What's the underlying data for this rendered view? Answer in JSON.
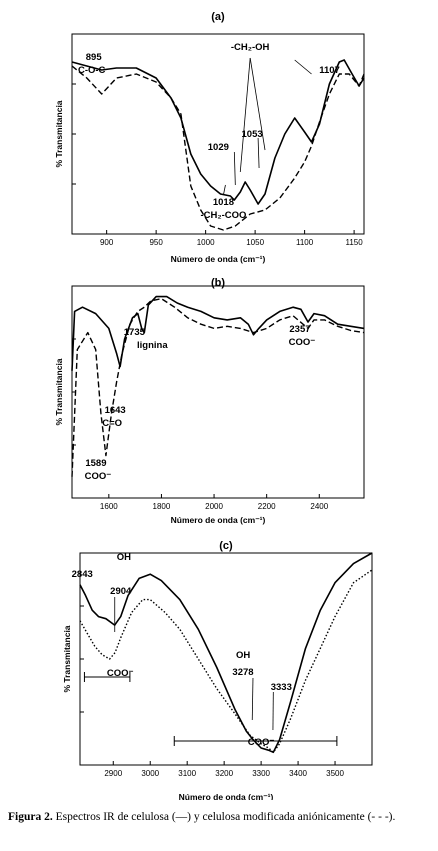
{
  "caption": {
    "label": "Figura 2.",
    "text": "Espectros IR de celulosa (—) y celulosa modificada aniónicamente (- - -)."
  },
  "chart_data": [
    {
      "type": "line",
      "panel": "(a)",
      "xlabel": "Número de onda (cm⁻¹)",
      "ylabel": "% Transmitancia",
      "xlim": [
        865,
        1160
      ],
      "ylim": [
        0,
        100
      ],
      "xticks": [
        "900",
        "950",
        "1000",
        "1050",
        "1100",
        "1150"
      ],
      "annotations": [
        {
          "text": "895",
          "x": 895
        },
        {
          "text": "C-O-C",
          "x": 895
        },
        {
          "text": "1029",
          "x": 1029
        },
        {
          "text": "1053",
          "x": 1053
        },
        {
          "text": "-CH₂-OH",
          "x": 1045
        },
        {
          "text": "1107",
          "x": 1107
        },
        {
          "text": "1018",
          "x": 1018
        },
        {
          "text": "-CH₂-COO",
          "x": 1018
        }
      ],
      "series": [
        {
          "style": "solid",
          "x": [
            865,
            880,
            895,
            910,
            930,
            950,
            965,
            975,
            985,
            995,
            1005,
            1015,
            1025,
            1029,
            1035,
            1040,
            1045,
            1053,
            1060,
            1070,
            1080,
            1090,
            1100,
            1107,
            1115,
            1125,
            1135,
            1140,
            1148,
            1155,
            1160
          ],
          "y": [
            86,
            84,
            82,
            83,
            83,
            78,
            68,
            58,
            40,
            30,
            24,
            20,
            19,
            17,
            21,
            26,
            22,
            15,
            20,
            38,
            50,
            58,
            51,
            46,
            55,
            75,
            86,
            87,
            80,
            74,
            78
          ]
        },
        {
          "style": "dashed",
          "x": [
            865,
            880,
            895,
            910,
            930,
            950,
            965,
            975,
            985,
            995,
            1005,
            1018,
            1030,
            1045,
            1060,
            1075,
            1090,
            1100,
            1107,
            1115,
            1125,
            1135,
            1145,
            1155,
            1160
          ],
          "y": [
            84,
            78,
            70,
            78,
            80,
            76,
            68,
            60,
            24,
            12,
            4,
            2,
            4,
            10,
            12,
            18,
            28,
            36,
            44,
            56,
            70,
            80,
            80,
            74,
            80
          ]
        }
      ]
    },
    {
      "type": "line",
      "panel": "(b)",
      "xlabel": "Número de onda (cm⁻¹)",
      "ylabel": "% Transmitancia",
      "xlim": [
        1460,
        2570
      ],
      "ylim": [
        0,
        100
      ],
      "xticks": [
        "1600",
        "1800",
        "2000",
        "2200",
        "2400"
      ],
      "annotations": [
        {
          "text": "1735",
          "x": 1735
        },
        {
          "text": "lignina",
          "x": 1735
        },
        {
          "text": "1643",
          "x": 1643
        },
        {
          "text": "C=O",
          "x": 1643
        },
        {
          "text": "1589",
          "x": 1589
        },
        {
          "text": "COO⁻",
          "x": 1589
        },
        {
          "text": "2357",
          "x": 2357
        },
        {
          "text": "COO⁻",
          "x": 2357
        }
      ],
      "series": [
        {
          "style": "solid",
          "x": [
            1460,
            1470,
            1500,
            1550,
            1600,
            1630,
            1643,
            1660,
            1690,
            1710,
            1725,
            1735,
            1750,
            1780,
            1820,
            1860,
            1900,
            1950,
            2000,
            2050,
            2100,
            2130,
            2150,
            2170,
            2200,
            2250,
            2300,
            2330,
            2357,
            2380,
            2420,
            2470,
            2520,
            2570
          ],
          "y": [
            60,
            88,
            90,
            87,
            80,
            68,
            62,
            75,
            85,
            87,
            80,
            78,
            91,
            95,
            95,
            92,
            90,
            88,
            85,
            84,
            85,
            82,
            77,
            80,
            84,
            88,
            90,
            89,
            83,
            87,
            86,
            82,
            81,
            80
          ]
        },
        {
          "style": "dashed",
          "x": [
            1460,
            1480,
            1520,
            1550,
            1570,
            1589,
            1610,
            1630,
            1650,
            1680,
            1710,
            1735,
            1760,
            1800,
            1850,
            1900,
            1950,
            2000,
            2050,
            2100,
            2150,
            2200,
            2250,
            2300,
            2357,
            2380,
            2420,
            2470,
            2520,
            2570
          ],
          "y": [
            10,
            70,
            78,
            70,
            40,
            20,
            40,
            55,
            68,
            82,
            88,
            90,
            93,
            94,
            90,
            85,
            82,
            80,
            81,
            80,
            78,
            80,
            84,
            86,
            80,
            84,
            84,
            81,
            79,
            78
          ]
        }
      ]
    },
    {
      "type": "line",
      "panel": "(c)",
      "xlabel": "Número de onda (cm⁻¹)",
      "ylabel": "% Transmitancia",
      "xlim": [
        2810,
        3600
      ],
      "ylim": [
        0,
        100
      ],
      "xticks": [
        "2900",
        "3000",
        "3100",
        "3200",
        "3300",
        "3400",
        "3500"
      ],
      "annotations": [
        {
          "text": "OH",
          "x": 2880
        },
        {
          "text": "2843",
          "x": 2843
        },
        {
          "text": "2904",
          "x": 2904
        },
        {
          "text": "COO⁻",
          "x": 2870
        },
        {
          "text": "OH",
          "x": 3300
        },
        {
          "text": "3278",
          "x": 3278
        },
        {
          "text": "3333",
          "x": 3333
        },
        {
          "text": "COO⁻",
          "x": 3300
        }
      ],
      "series": [
        {
          "style": "solid",
          "x": [
            2810,
            2825,
            2843,
            2860,
            2880,
            2904,
            2920,
            2940,
            2970,
            3000,
            3030,
            3080,
            3130,
            3180,
            3230,
            3260,
            3278,
            3300,
            3320,
            3333,
            3350,
            3380,
            3420,
            3460,
            3500,
            3550,
            3600
          ],
          "y": [
            85,
            80,
            73,
            70,
            69,
            66,
            70,
            80,
            88,
            90,
            87,
            78,
            64,
            46,
            26,
            16,
            12,
            8,
            7,
            6,
            12,
            30,
            55,
            73,
            86,
            95,
            100
          ]
        },
        {
          "style": "dotted",
          "x": [
            2810,
            2830,
            2850,
            2870,
            2890,
            2905,
            2920,
            2950,
            2980,
            3000,
            3040,
            3080,
            3130,
            3180,
            3230,
            3270,
            3300,
            3320,
            3333,
            3350,
            3380,
            3420,
            3460,
            3500,
            3550,
            3600
          ],
          "y": [
            68,
            62,
            56,
            52,
            50,
            53,
            60,
            72,
            78,
            78,
            72,
            64,
            50,
            36,
            24,
            14,
            10,
            8,
            6,
            10,
            22,
            40,
            55,
            70,
            86,
            92
          ]
        }
      ]
    }
  ]
}
